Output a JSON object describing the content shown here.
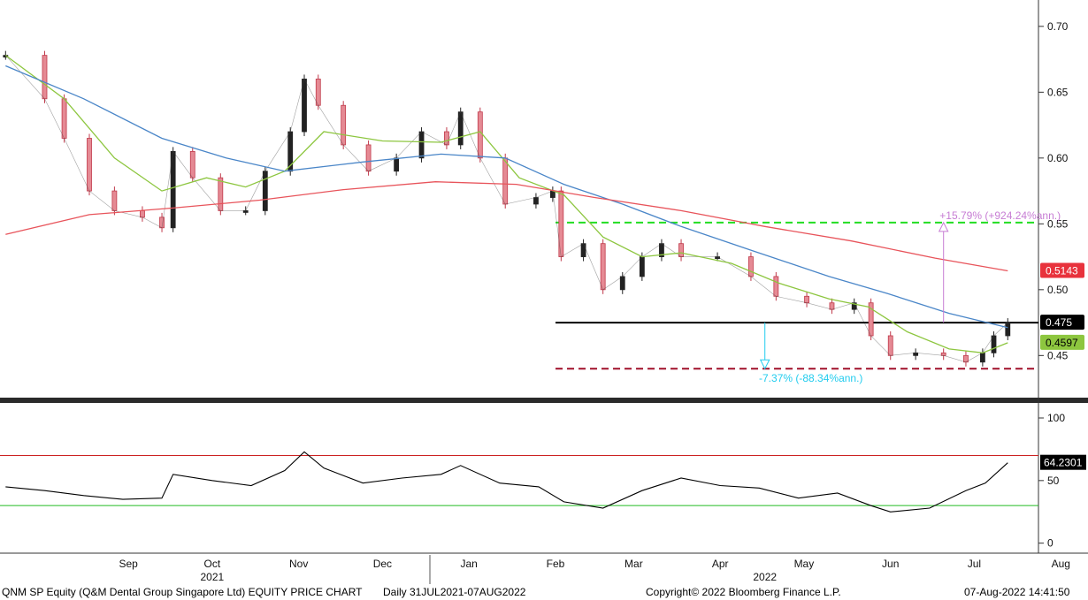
{
  "chart_data": {
    "type": "candlestick",
    "price_axis": {
      "ylim": [
        0.418,
        0.716
      ],
      "ticks": [
        "0.70",
        "0.65",
        "0.60",
        "0.55",
        "0.50",
        "0.45"
      ]
    },
    "indicator_axis": {
      "ylim": [
        -8,
        112
      ],
      "ticks": [
        "100",
        "50",
        "0"
      ]
    },
    "month_labels": [
      "Sep",
      "Oct",
      "Nov",
      "Dec",
      "Jan",
      "Feb",
      "Mar",
      "Apr",
      "May",
      "Jun",
      "Jul",
      "Aug"
    ],
    "year_labels": [
      "2021",
      "2022"
    ],
    "price_series": [
      {
        "date": "2021-08-02",
        "close": 0.678
      },
      {
        "date": "2021-08-16",
        "close": 0.645
      },
      {
        "date": "2021-08-23",
        "close": 0.615
      },
      {
        "date": "2021-09-01",
        "close": 0.575
      },
      {
        "date": "2021-09-10",
        "close": 0.56
      },
      {
        "date": "2021-09-20",
        "close": 0.555
      },
      {
        "date": "2021-09-27",
        "close": 0.547
      },
      {
        "date": "2021-10-01",
        "close": 0.605
      },
      {
        "date": "2021-10-08",
        "close": 0.585
      },
      {
        "date": "2021-10-18",
        "close": 0.56
      },
      {
        "date": "2021-10-27",
        "close": 0.56
      },
      {
        "date": "2021-11-03",
        "close": 0.59
      },
      {
        "date": "2021-11-12",
        "close": 0.62
      },
      {
        "date": "2021-11-17",
        "close": 0.66
      },
      {
        "date": "2021-11-22",
        "close": 0.64
      },
      {
        "date": "2021-12-01",
        "close": 0.61
      },
      {
        "date": "2021-12-10",
        "close": 0.59
      },
      {
        "date": "2021-12-20",
        "close": 0.6
      },
      {
        "date": "2021-12-29",
        "close": 0.62
      },
      {
        "date": "2022-01-07",
        "close": 0.61
      },
      {
        "date": "2022-01-12",
        "close": 0.635
      },
      {
        "date": "2022-01-19",
        "close": 0.6
      },
      {
        "date": "2022-01-28",
        "close": 0.565
      },
      {
        "date": "2022-02-08",
        "close": 0.57
      },
      {
        "date": "2022-02-14",
        "close": 0.575
      },
      {
        "date": "2022-02-17",
        "close": 0.525
      },
      {
        "date": "2022-02-25",
        "close": 0.535
      },
      {
        "date": "2022-03-04",
        "close": 0.5
      },
      {
        "date": "2022-03-11",
        "close": 0.51
      },
      {
        "date": "2022-03-18",
        "close": 0.525
      },
      {
        "date": "2022-03-25",
        "close": 0.535
      },
      {
        "date": "2022-04-01",
        "close": 0.525
      },
      {
        "date": "2022-04-14",
        "close": 0.525
      },
      {
        "date": "2022-04-26",
        "close": 0.51
      },
      {
        "date": "2022-05-05",
        "close": 0.495
      },
      {
        "date": "2022-05-16",
        "close": 0.49
      },
      {
        "date": "2022-05-25",
        "close": 0.485
      },
      {
        "date": "2022-06-02",
        "close": 0.49
      },
      {
        "date": "2022-06-08",
        "close": 0.465
      },
      {
        "date": "2022-06-15",
        "close": 0.45
      },
      {
        "date": "2022-06-24",
        "close": 0.452
      },
      {
        "date": "2022-07-04",
        "close": 0.45
      },
      {
        "date": "2022-07-12",
        "close": 0.445
      },
      {
        "date": "2022-07-18",
        "close": 0.452
      },
      {
        "date": "2022-07-22",
        "close": 0.465
      },
      {
        "date": "2022-07-27",
        "close": 0.475
      }
    ],
    "moving_averages": [
      {
        "color": "#8dc63f",
        "last_value": "0.4597",
        "values": [
          {
            "date": "2021-08-02",
            "value": 0.678
          },
          {
            "date": "2021-08-23",
            "value": 0.645
          },
          {
            "date": "2021-09-10",
            "value": 0.6
          },
          {
            "date": "2021-09-27",
            "value": 0.575
          },
          {
            "date": "2021-10-13",
            "value": 0.585
          },
          {
            "date": "2021-10-27",
            "value": 0.578
          },
          {
            "date": "2021-11-10",
            "value": 0.59
          },
          {
            "date": "2021-11-24",
            "value": 0.62
          },
          {
            "date": "2021-12-15",
            "value": 0.613
          },
          {
            "date": "2022-01-05",
            "value": 0.612
          },
          {
            "date": "2022-01-19",
            "value": 0.62
          },
          {
            "date": "2022-02-02",
            "value": 0.585
          },
          {
            "date": "2022-02-18",
            "value": 0.572
          },
          {
            "date": "2022-03-04",
            "value": 0.54
          },
          {
            "date": "2022-03-18",
            "value": 0.525
          },
          {
            "date": "2022-04-01",
            "value": 0.528
          },
          {
            "date": "2022-04-19",
            "value": 0.52
          },
          {
            "date": "2022-05-06",
            "value": 0.505
          },
          {
            "date": "2022-05-24",
            "value": 0.493
          },
          {
            "date": "2022-06-07",
            "value": 0.487
          },
          {
            "date": "2022-06-21",
            "value": 0.468
          },
          {
            "date": "2022-07-06",
            "value": 0.455
          },
          {
            "date": "2022-07-18",
            "value": 0.452
          },
          {
            "date": "2022-07-27",
            "value": 0.4597
          }
        ]
      },
      {
        "color": "#4a86c8",
        "last_value": "0.4712",
        "values": [
          {
            "date": "2021-08-02",
            "value": 0.67
          },
          {
            "date": "2021-08-30",
            "value": 0.645
          },
          {
            "date": "2021-09-27",
            "value": 0.615
          },
          {
            "date": "2021-10-20",
            "value": 0.6
          },
          {
            "date": "2021-11-10",
            "value": 0.59
          },
          {
            "date": "2021-12-08",
            "value": 0.597
          },
          {
            "date": "2022-01-05",
            "value": 0.603
          },
          {
            "date": "2022-01-28",
            "value": 0.6
          },
          {
            "date": "2022-02-18",
            "value": 0.58
          },
          {
            "date": "2022-03-11",
            "value": 0.565
          },
          {
            "date": "2022-04-01",
            "value": 0.548
          },
          {
            "date": "2022-04-26",
            "value": 0.53
          },
          {
            "date": "2022-05-24",
            "value": 0.51
          },
          {
            "date": "2022-06-14",
            "value": 0.497
          },
          {
            "date": "2022-07-06",
            "value": 0.482
          },
          {
            "date": "2022-07-27",
            "value": 0.4712
          }
        ]
      },
      {
        "color": "#e8545b",
        "last_value": "0.5143",
        "values": [
          {
            "date": "2021-08-02",
            "value": 0.542
          },
          {
            "date": "2021-09-01",
            "value": 0.557
          },
          {
            "date": "2021-10-01",
            "value": 0.562
          },
          {
            "date": "2021-11-01",
            "value": 0.568
          },
          {
            "date": "2021-12-01",
            "value": 0.576
          },
          {
            "date": "2022-01-03",
            "value": 0.582
          },
          {
            "date": "2022-02-01",
            "value": 0.58
          },
          {
            "date": "2022-03-01",
            "value": 0.57
          },
          {
            "date": "2022-04-01",
            "value": 0.56
          },
          {
            "date": "2022-05-01",
            "value": 0.548
          },
          {
            "date": "2022-06-01",
            "value": 0.537
          },
          {
            "date": "2022-07-01",
            "value": 0.524
          },
          {
            "date": "2022-07-27",
            "value": 0.5143
          }
        ]
      }
    ],
    "horizontal_lines": [
      {
        "value": 0.551,
        "color": "#22dd22",
        "style": "dashed"
      },
      {
        "value": 0.475,
        "color": "#000000",
        "style": "solid"
      },
      {
        "value": 0.44,
        "color": "#a0102a",
        "style": "dashed"
      }
    ],
    "annotations": [
      {
        "text": "+15.79% (+924.24%ann.)",
        "color": "#c77dd4"
      },
      {
        "text": "-7.37% (-88.34%ann.)",
        "color": "#22ccee"
      }
    ],
    "price_badges": [
      {
        "text": "0.5143",
        "bg": "#e8323c",
        "fg": "#ffffff"
      },
      {
        "text": "0.475",
        "bg": "#000000",
        "fg": "#ffffff"
      },
      {
        "text": "0.4597",
        "bg": "#8dc63f",
        "fg": "#000000"
      }
    ],
    "rsi": {
      "color": "#000000",
      "upper_line": {
        "value": 70,
        "color": "#cc2222"
      },
      "lower_line": {
        "value": 30,
        "color": "#22bb22"
      },
      "last_value": "64.2301",
      "values": [
        {
          "date": "2021-08-02",
          "value": 45
        },
        {
          "date": "2021-08-16",
          "value": 42
        },
        {
          "date": "2021-08-30",
          "value": 38
        },
        {
          "date": "2021-09-13",
          "value": 35
        },
        {
          "date": "2021-09-27",
          "value": 36
        },
        {
          "date": "2021-10-01",
          "value": 55
        },
        {
          "date": "2021-10-15",
          "value": 50
        },
        {
          "date": "2021-10-29",
          "value": 46
        },
        {
          "date": "2021-11-10",
          "value": 58
        },
        {
          "date": "2021-11-17",
          "value": 73
        },
        {
          "date": "2021-11-24",
          "value": 60
        },
        {
          "date": "2021-12-08",
          "value": 48
        },
        {
          "date": "2021-12-22",
          "value": 52
        },
        {
          "date": "2022-01-05",
          "value": 55
        },
        {
          "date": "2022-01-12",
          "value": 62
        },
        {
          "date": "2022-01-26",
          "value": 48
        },
        {
          "date": "2022-02-09",
          "value": 45
        },
        {
          "date": "2022-02-18",
          "value": 33
        },
        {
          "date": "2022-03-04",
          "value": 28
        },
        {
          "date": "2022-03-18",
          "value": 42
        },
        {
          "date": "2022-04-01",
          "value": 52
        },
        {
          "date": "2022-04-15",
          "value": 46
        },
        {
          "date": "2022-04-29",
          "value": 44
        },
        {
          "date": "2022-05-13",
          "value": 36
        },
        {
          "date": "2022-05-27",
          "value": 40
        },
        {
          "date": "2022-06-08",
          "value": 30
        },
        {
          "date": "2022-06-15",
          "value": 25
        },
        {
          "date": "2022-06-29",
          "value": 28
        },
        {
          "date": "2022-07-12",
          "value": 42
        },
        {
          "date": "2022-07-19",
          "value": 48
        },
        {
          "date": "2022-07-27",
          "value": 64.2301
        }
      ]
    }
  },
  "footer": {
    "left": "QNM SP Equity (Q&M Dental Group Singapore Ltd) EQUITY PRICE CHART",
    "range": "Daily 31JUL2021-07AUG2022",
    "copyright": "Copyright© 2022 Bloomberg Finance L.P.",
    "timestamp": "07-Aug-2022 14:41:50"
  }
}
